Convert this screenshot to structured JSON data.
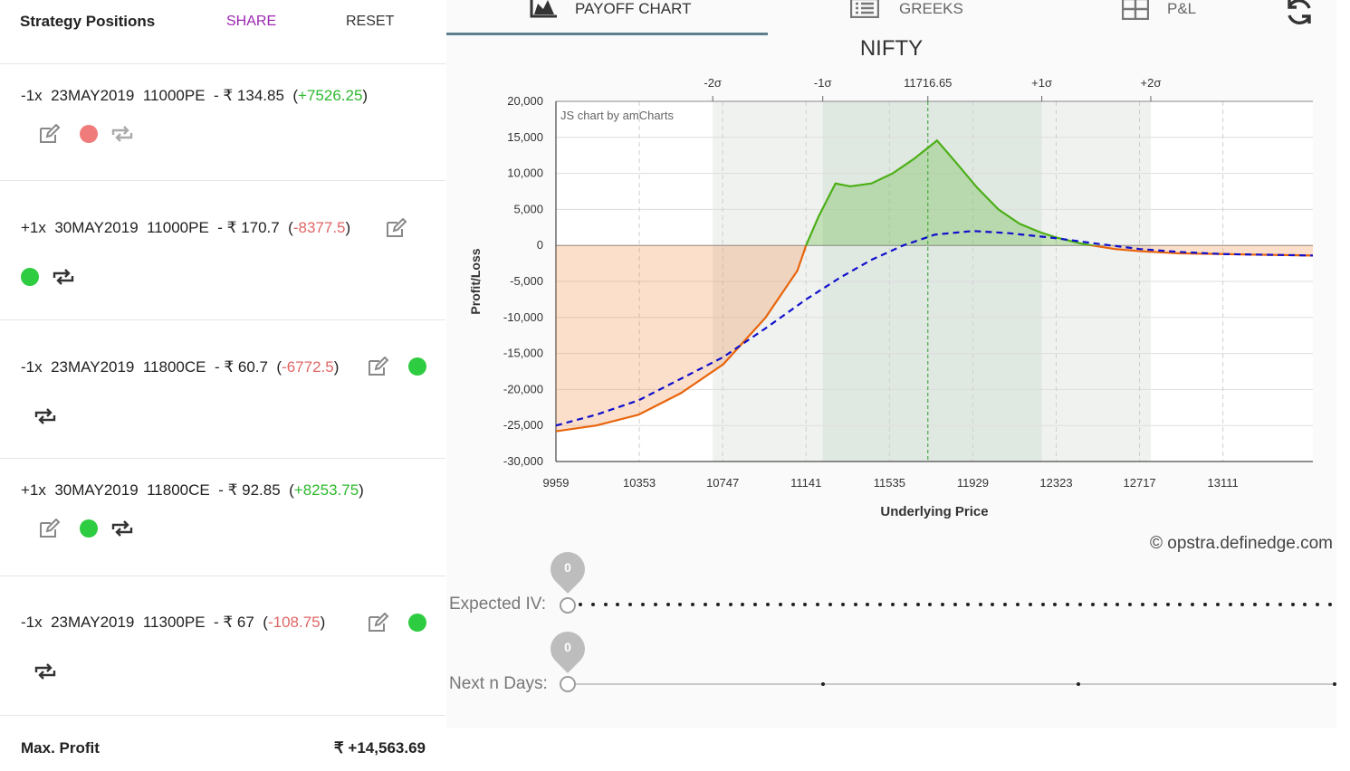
{
  "header": {
    "title": "Strategy Positions",
    "share": "SHARE",
    "reset": "RESET"
  },
  "positions": [
    {
      "qty": "-1x",
      "expiry": "23MAY2019",
      "strike": "11000PE",
      "price": "- ₹ 134.85",
      "pnl": "+7526.25",
      "pnl_color": "gain",
      "dot_color": "red"
    },
    {
      "qty": "+1x",
      "expiry": "30MAY2019",
      "strike": "11000PE",
      "price": "- ₹ 170.7",
      "pnl": "-8377.5",
      "pnl_color": "loss",
      "dot_color": "green"
    },
    {
      "qty": "-1x",
      "expiry": "23MAY2019",
      "strike": "11800CE",
      "price": "- ₹ 60.7",
      "pnl": "-6772.5",
      "pnl_color": "loss",
      "dot_color": "green"
    },
    {
      "qty": "+1x",
      "expiry": "30MAY2019",
      "strike": "11800CE",
      "price": "- ₹ 92.85",
      "pnl": "+8253.75",
      "pnl_color": "gain",
      "dot_color": "green"
    },
    {
      "qty": "-1x",
      "expiry": "23MAY2019",
      "strike": "11300PE",
      "price": "- ₹ 67",
      "pnl": "-108.75",
      "pnl_color": "loss",
      "dot_color": "green"
    }
  ],
  "summary": {
    "max_profit_label": "Max. Profit",
    "max_profit_value": "₹ +14,563.69"
  },
  "tabs": [
    {
      "label": "PAYOFF CHART",
      "icon": "area-chart-icon",
      "active": true
    },
    {
      "label": "GREEKS",
      "icon": "list-icon",
      "active": false
    },
    {
      "label": "P&L",
      "icon": "table-icon",
      "active": false
    }
  ],
  "chart_title": "NIFTY",
  "watermark": "© opstra.definedge.com",
  "sliders": {
    "expected_iv": {
      "label": "Expected IV:",
      "value": "0"
    },
    "next_days": {
      "label": "Next n Days:",
      "value": "0"
    }
  },
  "chart_data": {
    "type": "line",
    "credit": "JS chart by amCharts",
    "xlabel": "Underlying Price",
    "ylabel": "Profit/Loss",
    "xlim": [
      9959,
      13536
    ],
    "ylim": [
      -30000,
      20000
    ],
    "x_ticks": [
      "9959",
      "10353",
      "10747",
      "11141",
      "11535",
      "11929",
      "12323",
      "12717",
      "13111"
    ],
    "y_ticks": [
      "20,000",
      "15,000",
      "10,000",
      "5,000",
      "0",
      "-5,000",
      "-10,000",
      "-15,000",
      "-20,000",
      "-25,000",
      "-30,000"
    ],
    "sigma_markers": [
      {
        "label": "-2σ",
        "x": 10700
      },
      {
        "label": "-1σ",
        "x": 11220
      },
      {
        "label": "11716.65",
        "x": 11716.65
      },
      {
        "label": "+1σ",
        "x": 12255
      },
      {
        "label": "+2σ",
        "x": 12770
      }
    ],
    "series": [
      {
        "style": "solid",
        "color": "#e8640c",
        "points": [
          [
            9959,
            -25800
          ],
          [
            10150,
            -25000
          ],
          [
            10350,
            -23500
          ],
          [
            10550,
            -20500
          ],
          [
            10750,
            -16500
          ],
          [
            10950,
            -10000
          ],
          [
            11100,
            -3500
          ],
          [
            11141,
            0
          ],
          [
            11200,
            4000
          ],
          [
            11280,
            8600
          ],
          [
            11350,
            8200
          ],
          [
            11450,
            8600
          ],
          [
            11550,
            10000
          ],
          [
            11650,
            12000
          ],
          [
            11760,
            14564
          ],
          [
            11850,
            11500
          ],
          [
            11950,
            8000
          ],
          [
            12050,
            5000
          ],
          [
            12150,
            3000
          ],
          [
            12250,
            1800
          ],
          [
            12323,
            1100
          ],
          [
            12450,
            200
          ],
          [
            12600,
            -500
          ],
          [
            12717,
            -800
          ],
          [
            12900,
            -1100
          ],
          [
            13111,
            -1200
          ],
          [
            13300,
            -1300
          ],
          [
            13536,
            -1400
          ]
        ]
      },
      {
        "style": "dashed",
        "color": "#1010cc",
        "points": [
          [
            9959,
            -25000
          ],
          [
            10150,
            -23500
          ],
          [
            10350,
            -21500
          ],
          [
            10550,
            -18500
          ],
          [
            10750,
            -15500
          ],
          [
            10950,
            -11500
          ],
          [
            11141,
            -7500
          ],
          [
            11300,
            -4500
          ],
          [
            11450,
            -2000
          ],
          [
            11600,
            0
          ],
          [
            11750,
            1500
          ],
          [
            11929,
            2000
          ],
          [
            12100,
            1700
          ],
          [
            12323,
            1000
          ],
          [
            12500,
            300
          ],
          [
            12717,
            -500
          ],
          [
            12900,
            -900
          ],
          [
            13111,
            -1200
          ],
          [
            13536,
            -1400
          ]
        ]
      }
    ],
    "grid": true
  }
}
